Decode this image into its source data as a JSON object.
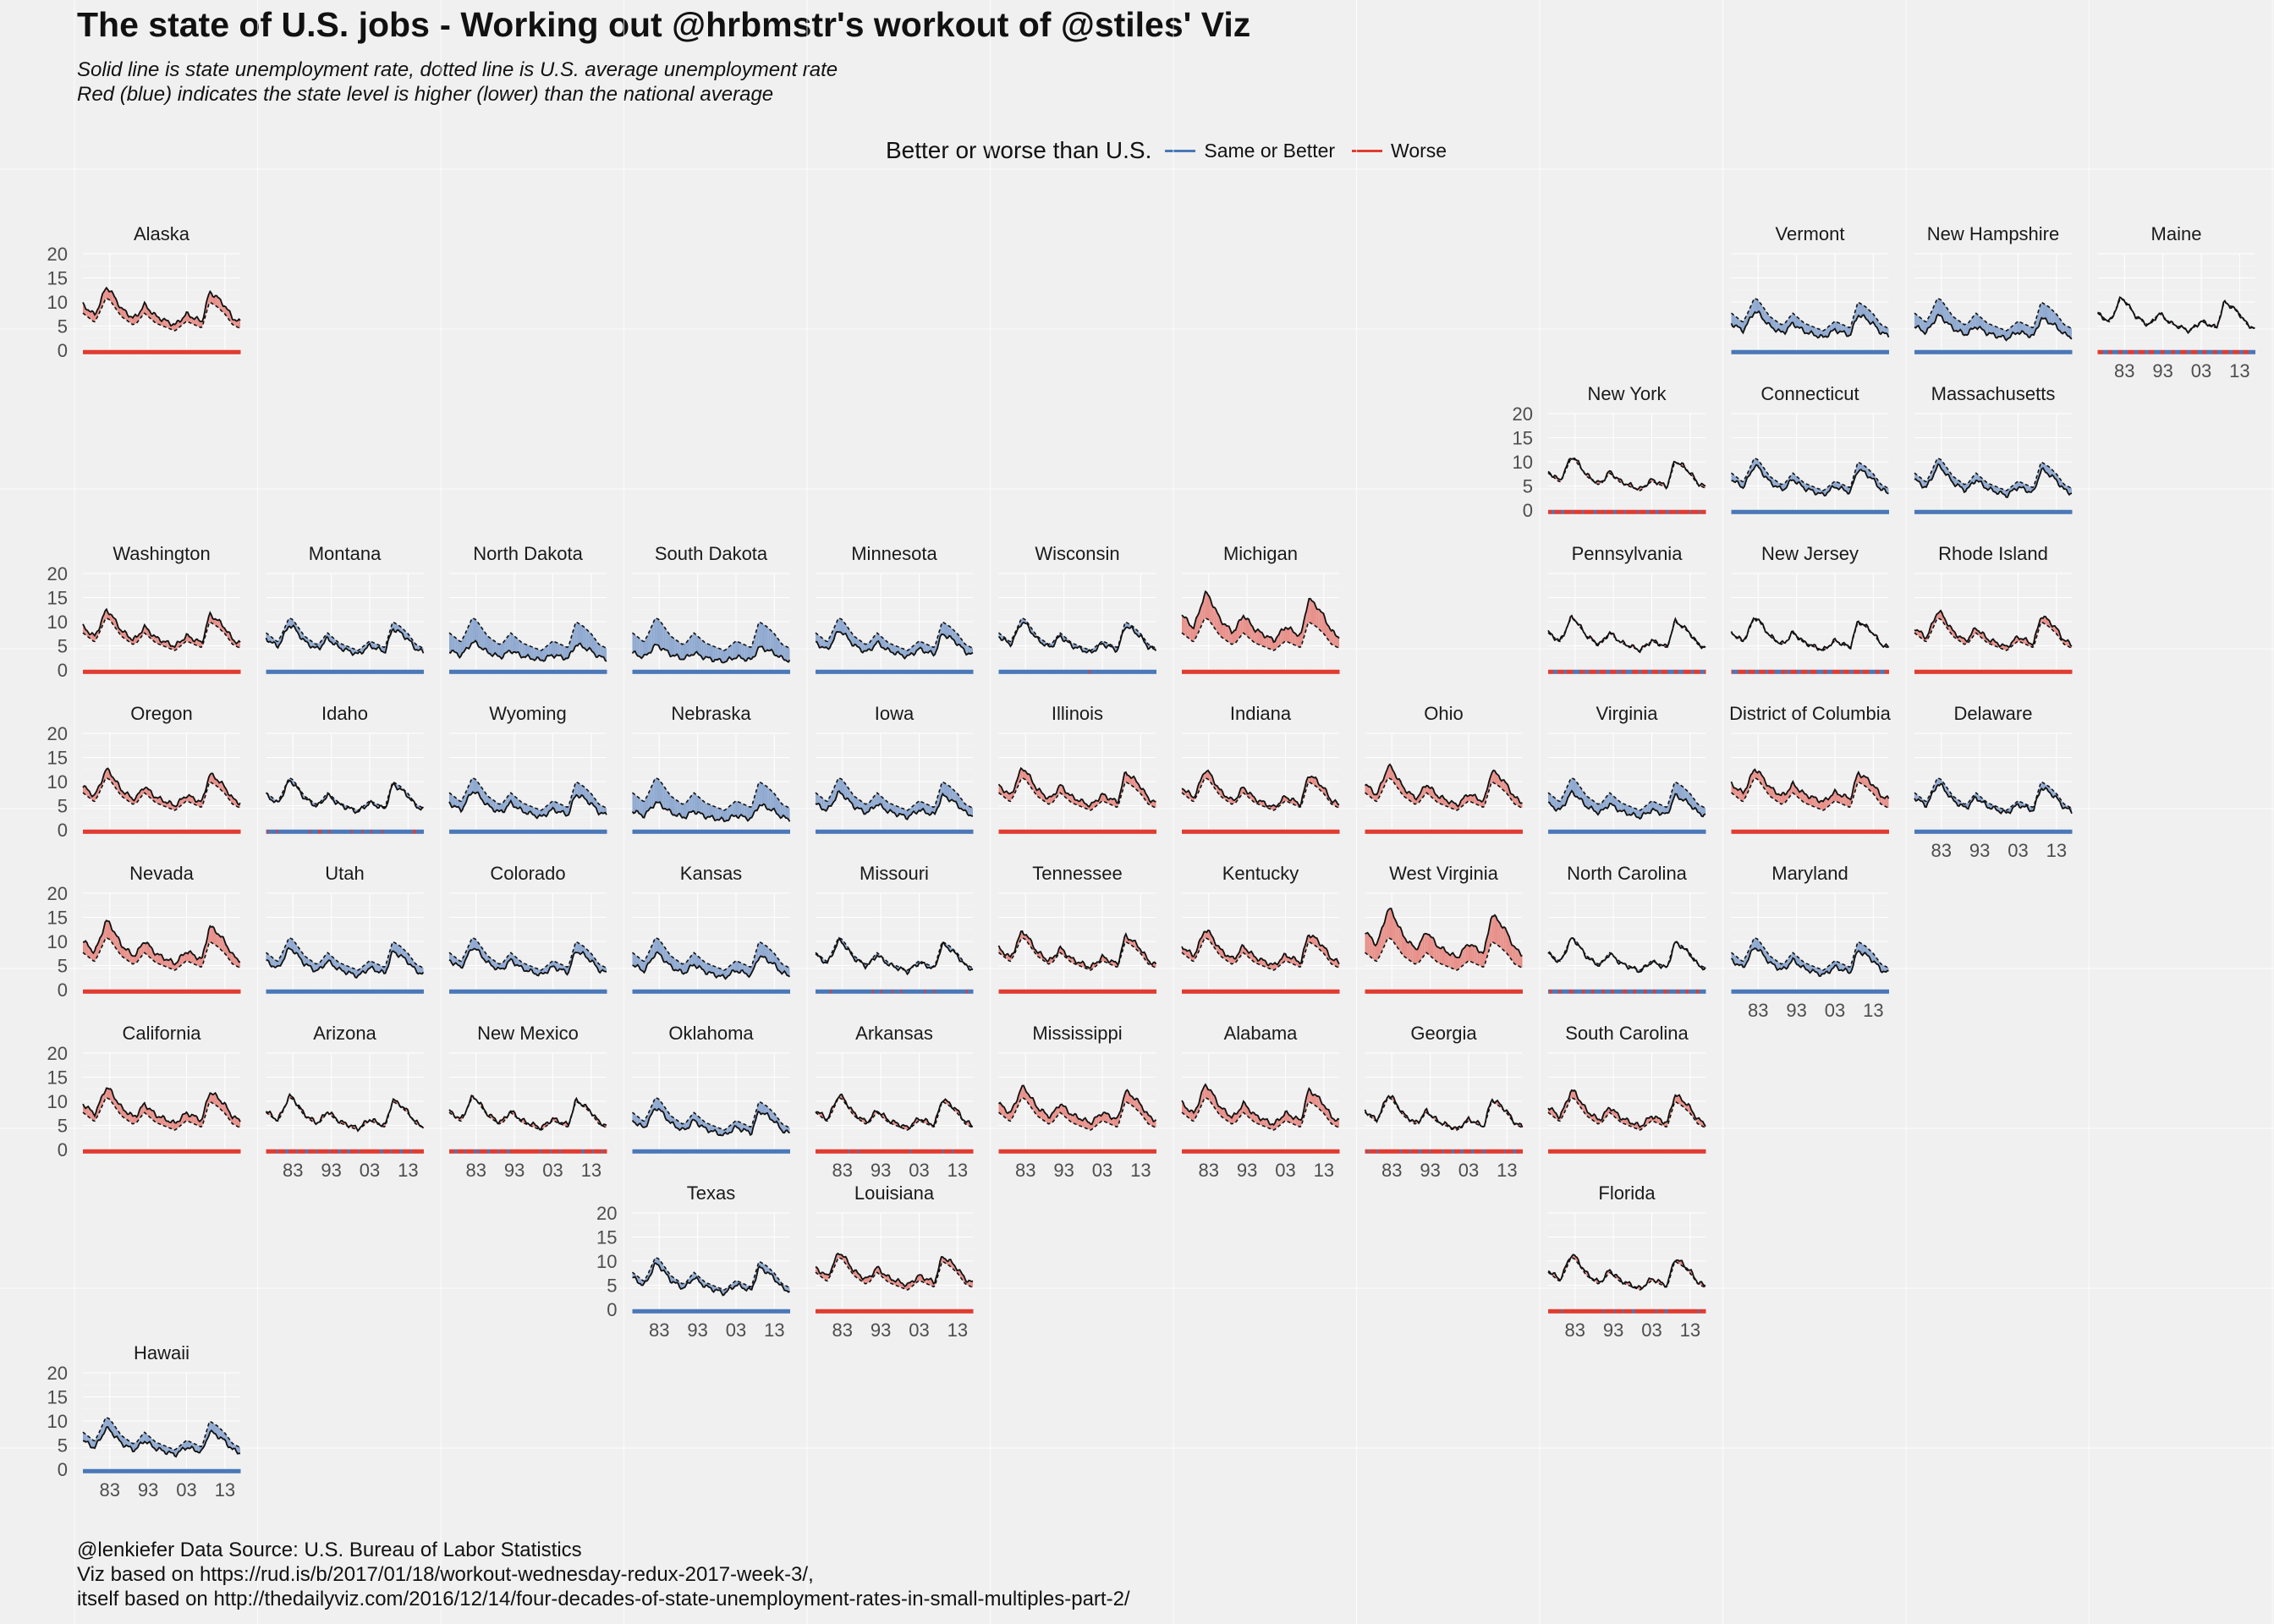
{
  "header": {
    "title": "The state of U.S. jobs - Working out @hrbmstr's workout of @stiles' Viz",
    "subtitle_line1": "Solid line is state unemployment rate, dotted line is U.S. average unemployment rate",
    "subtitle_line2": "Red (blue) indicates the state level is higher (lower) than the national average"
  },
  "legend": {
    "title": "Better or worse than U.S.",
    "items": [
      {
        "label": "Same or Better",
        "color": "#4a78b8"
      },
      {
        "label": "Worse",
        "color": "#e03c31"
      }
    ]
  },
  "caption": {
    "line1": "@lenkiefer Data Source: U.S. Bureau of Labor Statistics",
    "line2": "Viz based on https://rud.is/b/2017/01/18/workout-wednesday-redux-2017-week-3/,",
    "line3": "itself based on http://thedailyviz.com/2016/12/14/four-decades-of-state-unemployment-rates-in-small-multiples-part-2/"
  },
  "colors": {
    "worse_fill": "#e8908a",
    "better_fill": "#8fa9d0",
    "worse_line": "#e03c31",
    "better_line": "#4a78b8",
    "grid": "#ffffff",
    "background": "#f0f0f0"
  },
  "chart_data": {
    "type": "area",
    "description_of_encoding": "Grid of state small multiples (tile map). Each panel: solid line = state unemployment rate, dashed line = U.S. average, fill between them red if state is higher, blue if lower; bottom strip shows status over time.",
    "y_ticks": [
      0,
      5,
      10,
      15,
      20
    ],
    "x_ticks": [
      "83",
      "93",
      "03",
      "13"
    ],
    "ylim": [
      0,
      20
    ],
    "x_range": [
      1976,
      2017
    ],
    "us_keypoints": [
      [
        1976,
        7.7
      ],
      [
        1979,
        5.8
      ],
      [
        1980,
        7.2
      ],
      [
        1982,
        10.8
      ],
      [
        1983,
        10.4
      ],
      [
        1986,
        7.0
      ],
      [
        1989,
        5.3
      ],
      [
        1990,
        5.6
      ],
      [
        1992,
        7.7
      ],
      [
        1995,
        5.6
      ],
      [
        2000,
        4.0
      ],
      [
        2003,
        6.0
      ],
      [
        2007,
        4.6
      ],
      [
        2009,
        10.0
      ],
      [
        2011,
        9.0
      ],
      [
        2013,
        7.5
      ],
      [
        2015,
        5.3
      ],
      [
        2017,
        4.5
      ]
    ],
    "panels": [
      {
        "name": "Alaska",
        "row": 0,
        "col": 0,
        "ytick": true,
        "xtick": false,
        "scale": 1.15,
        "shift": 0.6
      },
      {
        "name": "Vermont",
        "row": 0,
        "col": 9,
        "ytick": false,
        "xtick": false,
        "scale": 0.8,
        "shift": -0.6
      },
      {
        "name": "New Hampshire",
        "row": 0,
        "col": 10,
        "ytick": false,
        "xtick": false,
        "scale": 0.7,
        "shift": -0.4
      },
      {
        "name": "Maine",
        "row": 0,
        "col": 11,
        "ytick": false,
        "xtick": true,
        "scale": 1.0,
        "shift": 0.0
      },
      {
        "name": "New York",
        "row": 1,
        "col": 8,
        "ytick": true,
        "xtick": false,
        "scale": 1.0,
        "shift": 0.3
      },
      {
        "name": "Connecticut",
        "row": 1,
        "col": 9,
        "ytick": false,
        "xtick": false,
        "scale": 0.9,
        "shift": -0.5
      },
      {
        "name": "Massachusetts",
        "row": 1,
        "col": 10,
        "ytick": false,
        "xtick": false,
        "scale": 0.9,
        "shift": -0.6
      },
      {
        "name": "Washington",
        "row": 2,
        "col": 0,
        "ytick": true,
        "xtick": false,
        "scale": 1.1,
        "shift": 0.5
      },
      {
        "name": "Montana",
        "row": 2,
        "col": 1,
        "ytick": false,
        "xtick": false,
        "scale": 0.9,
        "shift": -0.4
      },
      {
        "name": "North Dakota",
        "row": 2,
        "col": 2,
        "ytick": false,
        "xtick": false,
        "scale": 0.55,
        "shift": -0.2
      },
      {
        "name": "South Dakota",
        "row": 2,
        "col": 3,
        "ytick": false,
        "xtick": false,
        "scale": 0.5,
        "shift": -0.3
      },
      {
        "name": "Minnesota",
        "row": 2,
        "col": 4,
        "ytick": false,
        "xtick": false,
        "scale": 0.8,
        "shift": -0.5
      },
      {
        "name": "Wisconsin",
        "row": 2,
        "col": 5,
        "ytick": false,
        "xtick": false,
        "scale": 0.95,
        "shift": -0.3
      },
      {
        "name": "Michigan",
        "row": 2,
        "col": 6,
        "ytick": false,
        "xtick": false,
        "scale": 1.45,
        "shift": 0.3
      },
      {
        "name": "Pennsylvania",
        "row": 2,
        "col": 8,
        "ytick": false,
        "xtick": false,
        "scale": 1.0,
        "shift": 0.1
      },
      {
        "name": "New Jersey",
        "row": 2,
        "col": 9,
        "ytick": false,
        "xtick": false,
        "scale": 1.0,
        "shift": 0.1
      },
      {
        "name": "Rhode Island",
        "row": 2,
        "col": 10,
        "ytick": false,
        "xtick": false,
        "scale": 1.1,
        "shift": 0.3
      },
      {
        "name": "Oregon",
        "row": 3,
        "col": 0,
        "ytick": true,
        "xtick": false,
        "scale": 1.1,
        "shift": 0.6
      },
      {
        "name": "Idaho",
        "row": 3,
        "col": 1,
        "ytick": false,
        "xtick": false,
        "scale": 0.95,
        "shift": -0.1
      },
      {
        "name": "Wyoming",
        "row": 3,
        "col": 2,
        "ytick": false,
        "xtick": false,
        "scale": 0.8,
        "shift": -0.6
      },
      {
        "name": "Nebraska",
        "row": 3,
        "col": 3,
        "ytick": false,
        "xtick": false,
        "scale": 0.55,
        "shift": -0.3
      },
      {
        "name": "Iowa",
        "row": 3,
        "col": 4,
        "ytick": false,
        "xtick": false,
        "scale": 0.75,
        "shift": -0.4
      },
      {
        "name": "Illinois",
        "row": 3,
        "col": 5,
        "ytick": false,
        "xtick": false,
        "scale": 1.15,
        "shift": 0.4
      },
      {
        "name": "Indiana",
        "row": 3,
        "col": 6,
        "ytick": false,
        "xtick": false,
        "scale": 1.15,
        "shift": 0.0
      },
      {
        "name": "Ohio",
        "row": 3,
        "col": 7,
        "ytick": false,
        "xtick": false,
        "scale": 1.2,
        "shift": 0.3
      },
      {
        "name": "Virginia",
        "row": 3,
        "col": 8,
        "ytick": false,
        "xtick": false,
        "scale": 0.75,
        "shift": -0.4
      },
      {
        "name": "District of Columbia",
        "row": 3,
        "col": 9,
        "ytick": false,
        "xtick": false,
        "scale": 1.0,
        "shift": 1.8
      },
      {
        "name": "Delaware",
        "row": 3,
        "col": 10,
        "ytick": false,
        "xtick": true,
        "scale": 0.9,
        "shift": -0.2
      },
      {
        "name": "Nevada",
        "row": 4,
        "col": 0,
        "ytick": true,
        "xtick": false,
        "scale": 1.3,
        "shift": 0.2
      },
      {
        "name": "Utah",
        "row": 4,
        "col": 1,
        "ytick": false,
        "xtick": false,
        "scale": 0.85,
        "shift": -0.6
      },
      {
        "name": "Colorado",
        "row": 4,
        "col": 2,
        "ytick": false,
        "xtick": false,
        "scale": 0.85,
        "shift": -0.4
      },
      {
        "name": "Kansas",
        "row": 4,
        "col": 3,
        "ytick": false,
        "xtick": false,
        "scale": 0.75,
        "shift": -0.5
      },
      {
        "name": "Missouri",
        "row": 4,
        "col": 4,
        "ytick": false,
        "xtick": false,
        "scale": 0.95,
        "shift": -0.1
      },
      {
        "name": "Tennessee",
        "row": 4,
        "col": 5,
        "ytick": false,
        "xtick": false,
        "scale": 1.1,
        "shift": 0.2
      },
      {
        "name": "Kentucky",
        "row": 4,
        "col": 6,
        "ytick": false,
        "xtick": false,
        "scale": 1.1,
        "shift": 0.6
      },
      {
        "name": "West Virginia",
        "row": 4,
        "col": 7,
        "ytick": false,
        "xtick": false,
        "scale": 1.5,
        "shift": 0.6
      },
      {
        "name": "North Carolina",
        "row": 4,
        "col": 8,
        "ytick": false,
        "xtick": false,
        "scale": 1.0,
        "shift": -0.2
      },
      {
        "name": "Maryland",
        "row": 4,
        "col": 9,
        "ytick": false,
        "xtick": true,
        "scale": 0.85,
        "shift": -0.4
      },
      {
        "name": "California",
        "row": 5,
        "col": 0,
        "ytick": true,
        "xtick": false,
        "scale": 1.1,
        "shift": 1.0
      },
      {
        "name": "Arizona",
        "row": 5,
        "col": 1,
        "ytick": false,
        "xtick": true,
        "scale": 1.0,
        "shift": 0.3
      },
      {
        "name": "New Mexico",
        "row": 5,
        "col": 2,
        "ytick": false,
        "xtick": true,
        "scale": 0.95,
        "shift": 0.7
      },
      {
        "name": "Oklahoma",
        "row": 5,
        "col": 3,
        "ytick": false,
        "xtick": false,
        "scale": 0.85,
        "shift": -0.5
      },
      {
        "name": "Arkansas",
        "row": 5,
        "col": 4,
        "ytick": false,
        "xtick": true,
        "scale": 1.0,
        "shift": 0.5
      },
      {
        "name": "Mississippi",
        "row": 5,
        "col": 5,
        "ytick": false,
        "xtick": true,
        "scale": 1.1,
        "shift": 1.1
      },
      {
        "name": "Alabama",
        "row": 5,
        "col": 6,
        "ytick": false,
        "xtick": true,
        "scale": 1.2,
        "shift": 0.4
      },
      {
        "name": "Georgia",
        "row": 5,
        "col": 7,
        "ytick": false,
        "xtick": true,
        "scale": 1.05,
        "shift": 0.0
      },
      {
        "name": "South Carolina",
        "row": 5,
        "col": 8,
        "ytick": false,
        "xtick": false,
        "scale": 1.1,
        "shift": 0.4
      },
      {
        "name": "Texas",
        "row": 6,
        "col": 3,
        "ytick": true,
        "xtick": true,
        "scale": 0.9,
        "shift": -0.3
      },
      {
        "name": "Louisiana",
        "row": 6,
        "col": 4,
        "ytick": false,
        "xtick": true,
        "scale": 1.0,
        "shift": 1.0
      },
      {
        "name": "Florida",
        "row": 6,
        "col": 8,
        "ytick": false,
        "xtick": true,
        "scale": 1.05,
        "shift": 0.1
      },
      {
        "name": "Hawaii",
        "row": 7,
        "col": 0,
        "ytick": true,
        "xtick": true,
        "scale": 0.8,
        "shift": -0.2
      }
    ]
  }
}
